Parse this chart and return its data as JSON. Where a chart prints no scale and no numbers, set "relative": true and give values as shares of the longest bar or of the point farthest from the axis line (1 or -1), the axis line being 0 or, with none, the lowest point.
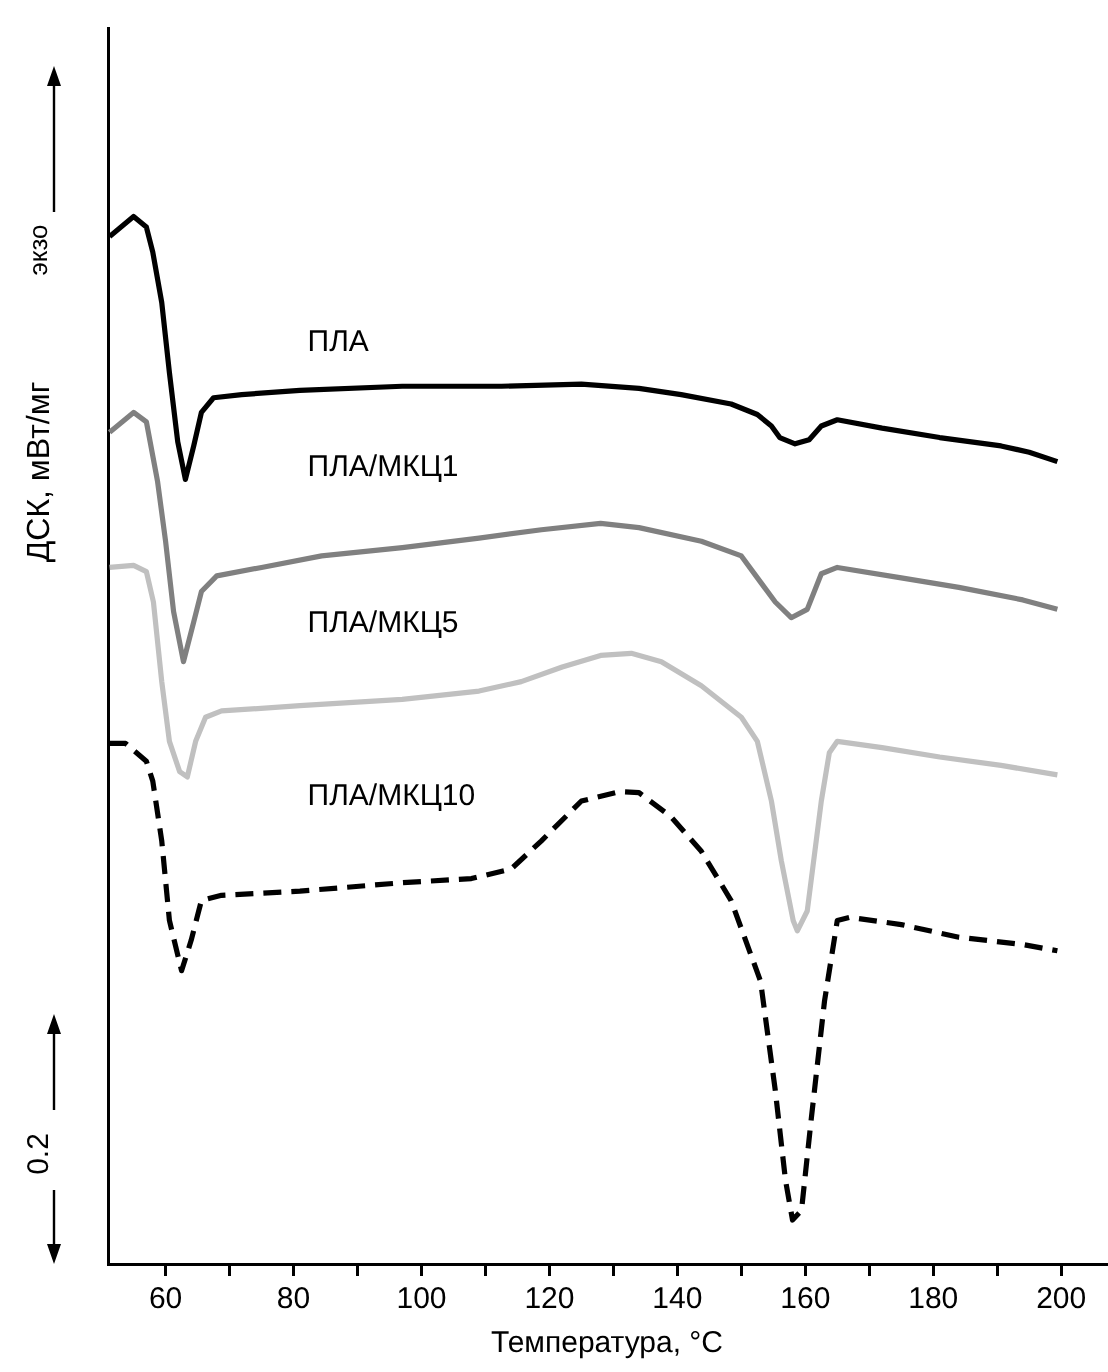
{
  "chart_data": {
    "type": "line",
    "relative": true,
    "xlabel": "Температура, °C",
    "ylabel": "ДСК, мВт/мг",
    "tick_labels": "x",
    "xlim": [
      51,
      207
    ],
    "xticks": [
      60,
      {
        "value": 70,
        "label": null
      },
      80,
      {
        "value": 90,
        "label": null
      },
      100,
      {
        "value": 110,
        "label": null
      },
      120,
      {
        "value": 130,
        "label": null
      },
      140,
      {
        "value": 150,
        "label": null
      },
      160,
      {
        "value": 170,
        "label": null
      },
      180,
      {
        "value": 190,
        "label": null
      },
      200
    ],
    "annotations": [
      "экзо",
      "0.2"
    ],
    "series": [
      {
        "name": "ПЛА",
        "color": "#000000",
        "line_style": "solid",
        "x": [
          51.25,
          55,
          57,
          58,
          59.4,
          60.6,
          61.9,
          63.1,
          64.4,
          65.6,
          67.5,
          71.9,
          81,
          97,
          112.5,
          125,
          134,
          140.6,
          148.4,
          152.5,
          154.7,
          156,
          158.4,
          160.6,
          162.5,
          165,
          172,
          181,
          190.6,
          195,
          199.4
        ],
        "values": [
          0.981,
          1.0,
          0.99,
          0.966,
          0.918,
          0.851,
          0.785,
          0.749,
          0.781,
          0.813,
          0.827,
          0.83,
          0.834,
          0.838,
          0.838,
          0.84,
          0.836,
          0.83,
          0.821,
          0.811,
          0.8,
          0.789,
          0.783,
          0.787,
          0.8,
          0.806,
          0.798,
          0.789,
          0.781,
          0.775,
          0.766
        ]
      },
      {
        "name": "ПЛА/МКЦ1",
        "color": "#808080",
        "line_style": "solid",
        "x": [
          51.25,
          55,
          57,
          58.75,
          60,
          61.25,
          62.8,
          64.4,
          65.6,
          68,
          75,
          84.4,
          97,
          109,
          118.75,
          128,
          134,
          143.75,
          150,
          153,
          155.3,
          157.8,
          160.3,
          162.5,
          165,
          175,
          184,
          194,
          199.4
        ],
        "values": [
          0.794,
          0.813,
          0.804,
          0.747,
          0.69,
          0.623,
          0.575,
          0.613,
          0.642,
          0.657,
          0.665,
          0.676,
          0.684,
          0.693,
          0.701,
          0.707,
          0.703,
          0.69,
          0.676,
          0.651,
          0.632,
          0.617,
          0.625,
          0.659,
          0.665,
          0.655,
          0.646,
          0.634,
          0.625
        ]
      },
      {
        "name": "ПЛА/МКЦ5",
        "color": "#c0c0c0",
        "line_style": "solid",
        "x": [
          51.25,
          55,
          57,
          58.1,
          59.4,
          60.6,
          62.2,
          63.4,
          64.7,
          66.25,
          68.75,
          81,
          97,
          109,
          115.6,
          122,
          128,
          132.8,
          137.5,
          143.75,
          150,
          152.5,
          154.7,
          156.25,
          158.1,
          158.75,
          160.3,
          162.5,
          163.75,
          165,
          172,
          181,
          190.6,
          199.4
        ],
        "values": [
          0.665,
          0.667,
          0.661,
          0.632,
          0.556,
          0.499,
          0.47,
          0.465,
          0.499,
          0.522,
          0.528,
          0.533,
          0.539,
          0.547,
          0.556,
          0.57,
          0.581,
          0.583,
          0.575,
          0.552,
          0.522,
          0.499,
          0.442,
          0.385,
          0.328,
          0.318,
          0.337,
          0.442,
          0.488,
          0.499,
          0.493,
          0.484,
          0.476,
          0.467
        ]
      },
      {
        "name": "ПЛА/МКЦ10",
        "color": "#000000",
        "line_style": "dashed",
        "x": [
          51.25,
          53.75,
          57,
          58,
          59.4,
          60.6,
          62.5,
          64,
          65.6,
          68.75,
          81,
          97,
          107.8,
          114,
          118.75,
          125,
          131,
          134,
          139,
          143.75,
          148.4,
          153,
          155.3,
          156.9,
          158,
          159.4,
          160.9,
          163,
          165,
          167,
          175,
          184,
          194,
          199.4
        ],
        "values": [
          0.497,
          0.497,
          0.48,
          0.461,
          0.404,
          0.328,
          0.28,
          0.309,
          0.347,
          0.352,
          0.356,
          0.364,
          0.368,
          0.377,
          0.404,
          0.442,
          0.451,
          0.45,
          0.427,
          0.394,
          0.347,
          0.27,
          0.166,
          0.08,
          0.042,
          0.051,
          0.137,
          0.251,
          0.328,
          0.331,
          0.324,
          0.312,
          0.305,
          0.299
        ]
      }
    ]
  }
}
